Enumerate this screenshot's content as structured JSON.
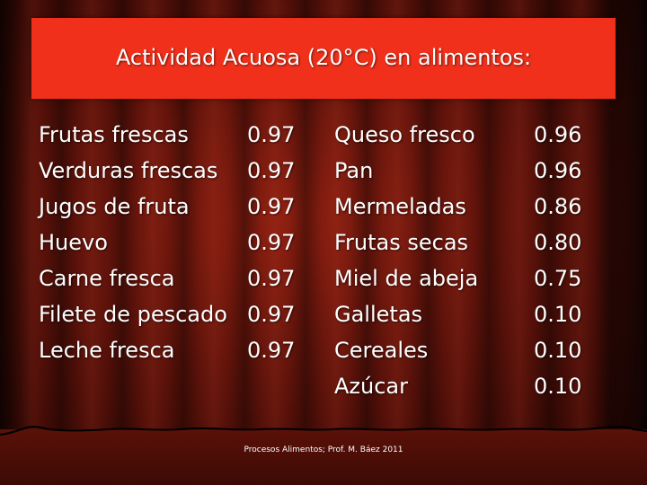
{
  "title": "Actividad Acuosa (20°C) en alimentos:",
  "left_column": [
    {
      "name": "Frutas frescas",
      "value": "0.97"
    },
    {
      "name": "Verduras frescas",
      "value": "0.97"
    },
    {
      "name": "Jugos de fruta",
      "value": "0.97"
    },
    {
      "name": "Huevo",
      "value": "0.97"
    },
    {
      "name": "Carne fresca",
      "value": "0.97"
    },
    {
      "name": "Filete de pescado",
      "value": "0.97"
    },
    {
      "name": "Leche fresca",
      "value": "0.97"
    }
  ],
  "right_column": [
    {
      "name": "Queso fresco",
      "value": "0.96"
    },
    {
      "name": "Pan",
      "value": "0.96"
    },
    {
      "name": "Mermeladas",
      "value": "0.86"
    },
    {
      "name": "Frutas secas",
      "value": "0.80"
    },
    {
      "name": "Miel de abeja",
      "value": "0.75"
    },
    {
      "name": "Galletas",
      "value": "0.10"
    },
    {
      "name": "Cereales",
      "value": "0.10"
    },
    {
      "name": "Azúcar",
      "value": "0.10"
    }
  ],
  "footer": "Procesos Alimentos; Prof. M. Báez 2011",
  "colors": {
    "title_box": "#f0301a",
    "curtain": "#5c120a",
    "text": "#ffffff"
  }
}
